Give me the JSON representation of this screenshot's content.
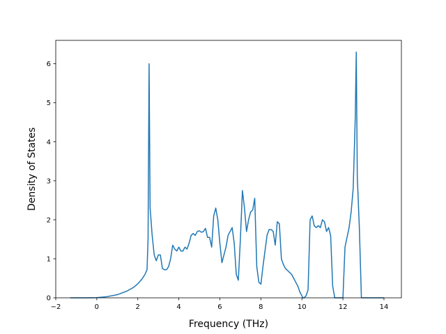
{
  "chart_data": {
    "type": "line",
    "title": "",
    "xlabel": "Frequency (THz)",
    "ylabel": "Density of States",
    "xlim": [
      -2.0,
      14.85
    ],
    "ylim": [
      0,
      6.6
    ],
    "xticks": [
      -2,
      0,
      2,
      4,
      6,
      8,
      10,
      12,
      14
    ],
    "xtick_labels": [
      "−2",
      "0",
      "2",
      "4",
      "6",
      "8",
      "10",
      "12",
      "14"
    ],
    "yticks": [
      0,
      1,
      2,
      3,
      4,
      5,
      6
    ],
    "ytick_labels": [
      "0",
      "1",
      "2",
      "3",
      "4",
      "5",
      "6"
    ],
    "grid": false,
    "legend": "none",
    "series": [
      {
        "color": "#1f77b4",
        "x": [
          -1.3,
          -0.5,
          0.0,
          0.5,
          1.0,
          1.5,
          1.8,
          2.0,
          2.2,
          2.35,
          2.45,
          2.5,
          2.55,
          2.6,
          2.7,
          2.8,
          2.9,
          3.0,
          3.1,
          3.2,
          3.3,
          3.4,
          3.5,
          3.6,
          3.7,
          3.8,
          3.9,
          4.0,
          4.1,
          4.2,
          4.3,
          4.4,
          4.5,
          4.6,
          4.7,
          4.8,
          4.9,
          5.0,
          5.1,
          5.2,
          5.3,
          5.4,
          5.5,
          5.6,
          5.7,
          5.8,
          5.9,
          6.0,
          6.1,
          6.2,
          6.3,
          6.4,
          6.5,
          6.6,
          6.7,
          6.8,
          6.9,
          7.0,
          7.1,
          7.2,
          7.3,
          7.4,
          7.5,
          7.6,
          7.7,
          7.8,
          7.9,
          8.0,
          8.1,
          8.2,
          8.3,
          8.4,
          8.5,
          8.6,
          8.7,
          8.8,
          8.9,
          9.0,
          9.1,
          9.2,
          9.3,
          9.4,
          9.5,
          9.6,
          9.7,
          9.8,
          9.9,
          10.0,
          10.05,
          10.1,
          10.2,
          10.3,
          10.4,
          10.5,
          10.6,
          10.7,
          10.8,
          10.9,
          11.0,
          11.1,
          11.2,
          11.3,
          11.4,
          11.5,
          11.6,
          11.7,
          11.8,
          11.9,
          12.0,
          12.1,
          12.2,
          12.3,
          12.4,
          12.5,
          12.6,
          12.65,
          12.7,
          12.8,
          12.9,
          13.0,
          13.5,
          14.0
        ],
        "y": [
          0.0,
          0.0,
          0.005,
          0.03,
          0.08,
          0.18,
          0.27,
          0.36,
          0.48,
          0.6,
          0.72,
          1.5,
          6.0,
          2.3,
          1.6,
          1.1,
          0.95,
          1.1,
          1.1,
          0.75,
          0.72,
          0.72,
          0.8,
          1.0,
          1.35,
          1.25,
          1.2,
          1.3,
          1.2,
          1.2,
          1.3,
          1.25,
          1.4,
          1.6,
          1.65,
          1.6,
          1.7,
          1.72,
          1.68,
          1.7,
          1.78,
          1.55,
          1.55,
          1.3,
          2.1,
          2.3,
          2.0,
          1.4,
          0.9,
          1.1,
          1.3,
          1.6,
          1.7,
          1.8,
          1.4,
          0.6,
          0.45,
          1.5,
          2.75,
          2.3,
          1.7,
          2.0,
          2.2,
          2.25,
          2.55,
          0.8,
          0.4,
          0.35,
          0.8,
          1.2,
          1.6,
          1.75,
          1.75,
          1.7,
          1.35,
          1.95,
          1.9,
          1.0,
          0.85,
          0.75,
          0.7,
          0.65,
          0.6,
          0.5,
          0.4,
          0.3,
          0.15,
          0.05,
          0.0,
          0.0,
          0.05,
          0.2,
          2.0,
          2.1,
          1.85,
          1.8,
          1.85,
          1.8,
          2.0,
          1.95,
          1.7,
          1.8,
          1.6,
          0.3,
          0.0,
          0.0,
          0.0,
          0.0,
          0.0,
          1.3,
          1.55,
          1.8,
          2.2,
          2.8,
          4.6,
          6.3,
          3.1,
          1.8,
          0.0,
          0.0,
          0.0,
          0.0
        ]
      }
    ]
  }
}
